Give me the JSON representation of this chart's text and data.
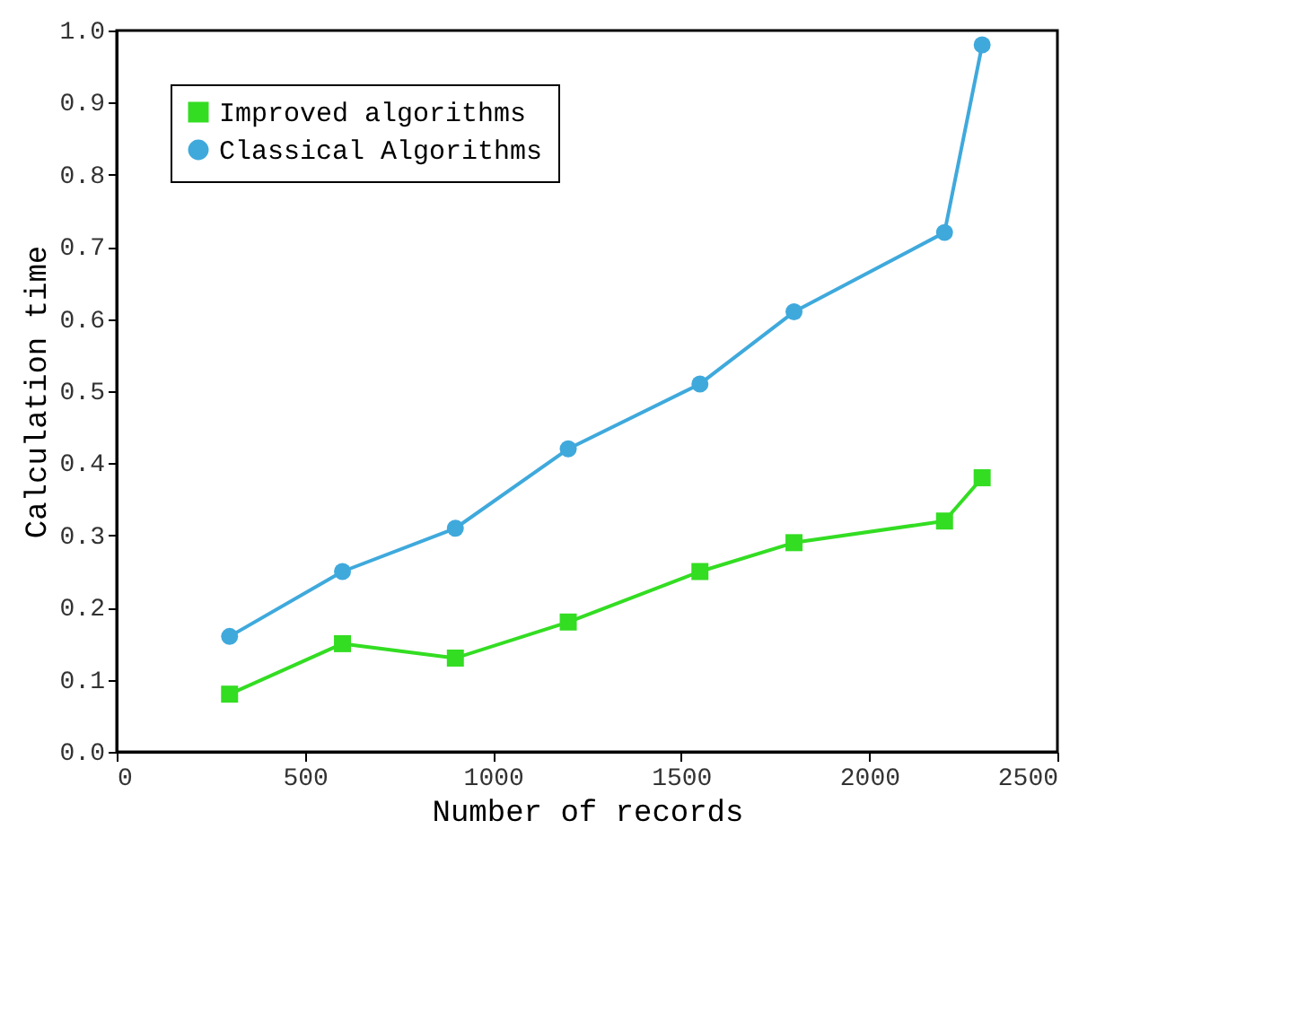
{
  "chart_data": {
    "type": "line",
    "xlabel": "Number of records",
    "ylabel": "Calculation time",
    "x": [
      300,
      600,
      900,
      1200,
      1550,
      1800,
      2200,
      2300
    ],
    "series": [
      {
        "name": "Improved algorithms",
        "color": "#33dd22",
        "marker": "square",
        "values": [
          0.08,
          0.15,
          0.13,
          0.18,
          0.25,
          0.29,
          0.32,
          0.38
        ]
      },
      {
        "name": "Classical Algorithms",
        "color": "#3fa9dc",
        "marker": "circle",
        "values": [
          0.16,
          0.25,
          0.31,
          0.42,
          0.51,
          0.61,
          0.72,
          0.98
        ]
      }
    ],
    "xlim": [
      0,
      2500
    ],
    "xticks": [
      0,
      500,
      1000,
      1500,
      2000,
      2500
    ],
    "ylim": [
      0,
      1.0
    ],
    "yticks": [
      {
        "value": 0,
        "label": "0.0"
      },
      0.1,
      0.2,
      0.3,
      0.4,
      0.5,
      0.6,
      0.7,
      0.8,
      0.9,
      {
        "value": 1.0,
        "label": "1.0"
      }
    ],
    "grid": false,
    "legend": "top left",
    "line_style": "solid"
  }
}
